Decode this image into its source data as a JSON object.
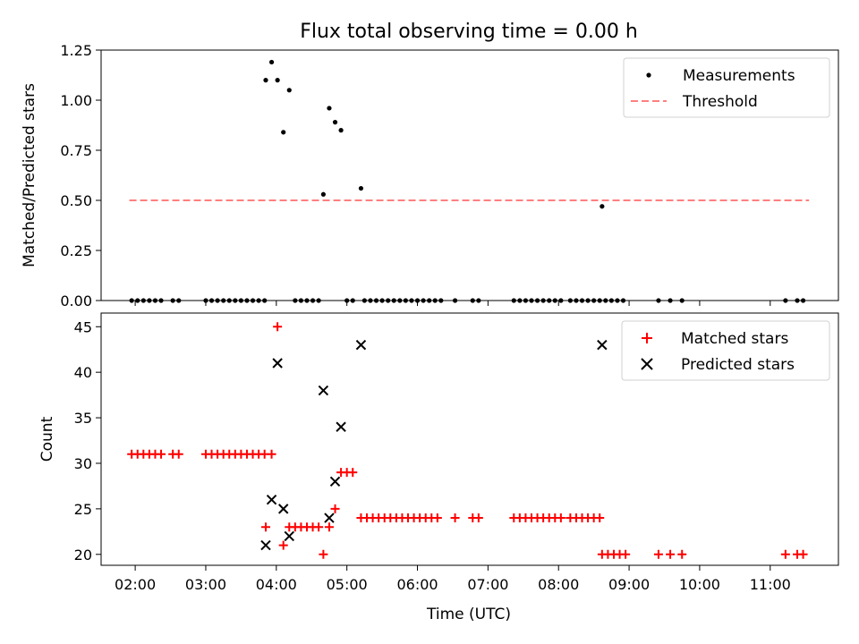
{
  "title": "Flux total observing time = 0.00 h",
  "xlabel": "Time (UTC)",
  "colors": {
    "measurement": "#000000",
    "threshold": "#ff7f7f",
    "matched": "#ff0000",
    "predicted": "#000000"
  },
  "chart_data": [
    {
      "type": "scatter",
      "ylabel": "Matched/Predicted stars",
      "xlim": [
        "01:31",
        "11:58"
      ],
      "ylim": [
        0,
        1.25
      ],
      "yticks": [
        "0.00",
        "0.25",
        "0.50",
        "0.75",
        "1.00",
        "1.25"
      ],
      "grid": false,
      "legend_position": "top-right",
      "legend": [
        "Measurements",
        "Threshold"
      ],
      "threshold": {
        "name": "Threshold",
        "value": 0.5,
        "x_range": [
          "01:55",
          "11:33"
        ]
      },
      "series": [
        {
          "name": "Measurements",
          "marker": "dot",
          "points": [
            [
              "01:57",
              0
            ],
            [
              "02:02",
              0
            ],
            [
              "02:07",
              0
            ],
            [
              "02:12",
              0
            ],
            [
              "02:17",
              0
            ],
            [
              "02:22",
              0
            ],
            [
              "02:32",
              0
            ],
            [
              "02:37",
              0
            ],
            [
              "03:00",
              0
            ],
            [
              "03:05",
              0
            ],
            [
              "03:10",
              0
            ],
            [
              "03:15",
              0
            ],
            [
              "03:20",
              0
            ],
            [
              "03:25",
              0
            ],
            [
              "03:30",
              0
            ],
            [
              "03:35",
              0
            ],
            [
              "03:40",
              0
            ],
            [
              "03:45",
              0
            ],
            [
              "03:50",
              0
            ],
            [
              "03:51",
              1.1
            ],
            [
              "03:56",
              1.19
            ],
            [
              "04:01",
              1.1
            ],
            [
              "04:06",
              0.84
            ],
            [
              "04:11",
              1.05
            ],
            [
              "04:16",
              0
            ],
            [
              "04:21",
              0
            ],
            [
              "04:26",
              0
            ],
            [
              "04:31",
              0
            ],
            [
              "04:36",
              0
            ],
            [
              "04:40",
              0.53
            ],
            [
              "04:45",
              0.96
            ],
            [
              "04:50",
              0.89
            ],
            [
              "04:55",
              0.85
            ],
            [
              "05:00",
              0
            ],
            [
              "05:05",
              0
            ],
            [
              "05:12",
              0.56
            ],
            [
              "05:15",
              0
            ],
            [
              "05:20",
              0
            ],
            [
              "05:25",
              0
            ],
            [
              "05:30",
              0
            ],
            [
              "05:35",
              0
            ],
            [
              "05:40",
              0
            ],
            [
              "05:45",
              0
            ],
            [
              "05:50",
              0
            ],
            [
              "05:55",
              0
            ],
            [
              "06:00",
              0
            ],
            [
              "06:05",
              0
            ],
            [
              "06:10",
              0
            ],
            [
              "06:15",
              0
            ],
            [
              "06:20",
              0
            ],
            [
              "06:32",
              0
            ],
            [
              "06:47",
              0
            ],
            [
              "06:52",
              0
            ],
            [
              "07:22",
              0
            ],
            [
              "07:27",
              0
            ],
            [
              "07:32",
              0
            ],
            [
              "07:37",
              0
            ],
            [
              "07:42",
              0
            ],
            [
              "07:47",
              0
            ],
            [
              "07:52",
              0
            ],
            [
              "07:57",
              0
            ],
            [
              "08:02",
              0
            ],
            [
              "08:10",
              0
            ],
            [
              "08:15",
              0
            ],
            [
              "08:20",
              0
            ],
            [
              "08:25",
              0
            ],
            [
              "08:30",
              0
            ],
            [
              "08:35",
              0
            ],
            [
              "08:37",
              0.47
            ],
            [
              "08:40",
              0
            ],
            [
              "08:45",
              0
            ],
            [
              "08:50",
              0
            ],
            [
              "08:55",
              0
            ],
            [
              "09:25",
              0
            ],
            [
              "09:35",
              0
            ],
            [
              "09:45",
              0
            ],
            [
              "11:13",
              0
            ],
            [
              "11:23",
              0
            ],
            [
              "11:28",
              0
            ]
          ]
        }
      ]
    },
    {
      "type": "scatter",
      "ylabel": "Count",
      "xlim": [
        "01:31",
        "11:58"
      ],
      "ylim": [
        18.8,
        46.5
      ],
      "yticks": [
        "20",
        "25",
        "30",
        "35",
        "40",
        "45"
      ],
      "xticks": [
        "02:00",
        "03:00",
        "04:00",
        "05:00",
        "06:00",
        "07:00",
        "08:00",
        "09:00",
        "10:00",
        "11:00"
      ],
      "grid": false,
      "legend_position": "top-right",
      "legend": [
        "Matched stars",
        "Predicted stars"
      ],
      "series": [
        {
          "name": "Matched stars",
          "marker": "plus",
          "points": [
            [
              "01:57",
              31
            ],
            [
              "02:02",
              31
            ],
            [
              "02:07",
              31
            ],
            [
              "02:12",
              31
            ],
            [
              "02:17",
              31
            ],
            [
              "02:22",
              31
            ],
            [
              "02:32",
              31
            ],
            [
              "02:37",
              31
            ],
            [
              "03:00",
              31
            ],
            [
              "03:05",
              31
            ],
            [
              "03:10",
              31
            ],
            [
              "03:15",
              31
            ],
            [
              "03:20",
              31
            ],
            [
              "03:25",
              31
            ],
            [
              "03:30",
              31
            ],
            [
              "03:35",
              31
            ],
            [
              "03:40",
              31
            ],
            [
              "03:45",
              31
            ],
            [
              "03:50",
              31
            ],
            [
              "03:56",
              31
            ],
            [
              "03:51",
              23
            ],
            [
              "04:01",
              45
            ],
            [
              "04:06",
              21
            ],
            [
              "04:11",
              23
            ],
            [
              "04:16",
              23
            ],
            [
              "04:21",
              23
            ],
            [
              "04:26",
              23
            ],
            [
              "04:31",
              23
            ],
            [
              "04:36",
              23
            ],
            [
              "04:40",
              20
            ],
            [
              "04:45",
              23
            ],
            [
              "04:50",
              25
            ],
            [
              "04:55",
              29
            ],
            [
              "05:00",
              29
            ],
            [
              "05:05",
              29
            ],
            [
              "05:12",
              24
            ],
            [
              "05:17",
              24
            ],
            [
              "05:22",
              24
            ],
            [
              "05:27",
              24
            ],
            [
              "05:32",
              24
            ],
            [
              "05:37",
              24
            ],
            [
              "05:42",
              24
            ],
            [
              "05:47",
              24
            ],
            [
              "05:52",
              24
            ],
            [
              "05:57",
              24
            ],
            [
              "06:02",
              24
            ],
            [
              "06:07",
              24
            ],
            [
              "06:12",
              24
            ],
            [
              "06:17",
              24
            ],
            [
              "06:32",
              24
            ],
            [
              "06:47",
              24
            ],
            [
              "06:52",
              24
            ],
            [
              "07:22",
              24
            ],
            [
              "07:27",
              24
            ],
            [
              "07:32",
              24
            ],
            [
              "07:37",
              24
            ],
            [
              "07:42",
              24
            ],
            [
              "07:47",
              24
            ],
            [
              "07:52",
              24
            ],
            [
              "07:57",
              24
            ],
            [
              "08:02",
              24
            ],
            [
              "08:10",
              24
            ],
            [
              "08:15",
              24
            ],
            [
              "08:20",
              24
            ],
            [
              "08:25",
              24
            ],
            [
              "08:30",
              24
            ],
            [
              "08:35",
              24
            ],
            [
              "08:37",
              20
            ],
            [
              "08:42",
              20
            ],
            [
              "08:47",
              20
            ],
            [
              "08:52",
              20
            ],
            [
              "08:57",
              20
            ],
            [
              "09:25",
              20
            ],
            [
              "09:35",
              20
            ],
            [
              "09:45",
              20
            ],
            [
              "11:13",
              20
            ],
            [
              "11:23",
              20
            ],
            [
              "11:28",
              20
            ]
          ]
        },
        {
          "name": "Predicted stars",
          "marker": "x",
          "points": [
            [
              "03:51",
              21
            ],
            [
              "03:56",
              26
            ],
            [
              "04:01",
              41
            ],
            [
              "04:06",
              25
            ],
            [
              "04:11",
              22
            ],
            [
              "04:40",
              38
            ],
            [
              "04:45",
              24
            ],
            [
              "04:50",
              28
            ],
            [
              "04:55",
              34
            ],
            [
              "05:12",
              43
            ],
            [
              "08:37",
              43
            ]
          ]
        }
      ]
    }
  ]
}
